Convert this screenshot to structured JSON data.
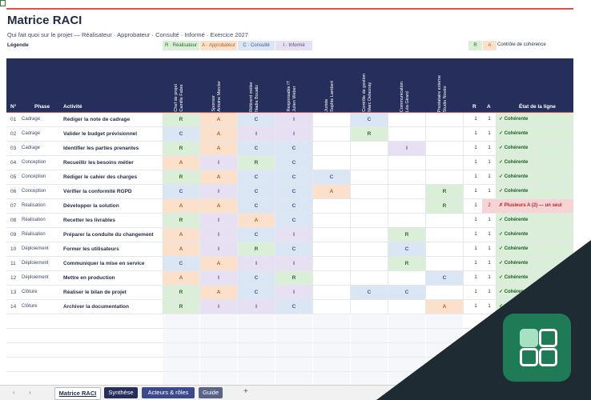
{
  "title": "Matrice RACI",
  "subtitle": "Qui fait quoi sur le projet — Réalisateur · Approbateur · Consulté · Informé · Exercice 2027",
  "legend": {
    "label": "Légende",
    "r": "R · Réalisateur",
    "a": "A · Approbateur",
    "c": "C · Consulté",
    "i": "I · Informé",
    "check_r": "R",
    "check_a": "A",
    "check_label": "Contrôle de cohérence"
  },
  "header": {
    "num": "N°",
    "phase": "Phase",
    "activity": "Activité",
    "roles": [
      "Chef de projet\nCamille Fabre",
      "Sponsor\nAntoine Mercier",
      "Référent métier\nNadia Boualiz",
      "Responsable IT\nJulien Weber",
      "Juriste\nSophie Lambert",
      "Contrôle de gestion\nMarc Delaunay",
      "Communication\nLéa Girard",
      "Prestataire externe\nStudio Novéo"
    ],
    "r": "R",
    "a": "A",
    "state": "État de la ligne"
  },
  "rows": [
    {
      "n": "01",
      "phase": "Cadrage",
      "activity": "Rédiger la note de cadrage",
      "roles": [
        "R",
        "A",
        "C",
        "I",
        "",
        "C",
        "",
        ""
      ],
      "r": "1",
      "a": "1",
      "state": "✓ Cohérente",
      "ok": true
    },
    {
      "n": "02",
      "phase": "Cadrage",
      "activity": "Valider le budget prévisionnel",
      "roles": [
        "C",
        "A",
        "I",
        "I",
        "",
        "R",
        "",
        ""
      ],
      "r": "1",
      "a": "1",
      "state": "✓ Cohérente",
      "ok": true
    },
    {
      "n": "03",
      "phase": "Cadrage",
      "activity": "Identifier les parties prenantes",
      "roles": [
        "R",
        "A",
        "C",
        "C",
        "",
        "",
        "I",
        ""
      ],
      "r": "1",
      "a": "1",
      "state": "✓ Cohérente",
      "ok": true
    },
    {
      "n": "04",
      "phase": "Conception",
      "activity": "Recueillir les besoins métier",
      "roles": [
        "A",
        "I",
        "R",
        "C",
        "",
        "",
        "",
        ""
      ],
      "r": "1",
      "a": "1",
      "state": "✓ Cohérente",
      "ok": true
    },
    {
      "n": "05",
      "phase": "Conception",
      "activity": "Rédiger le cahier des charges",
      "roles": [
        "R",
        "A",
        "C",
        "C",
        "C",
        "",
        "",
        ""
      ],
      "r": "1",
      "a": "1",
      "state": "✓ Cohérente",
      "ok": true
    },
    {
      "n": "06",
      "phase": "Conception",
      "activity": "Vérifier la conformité RGPD",
      "roles": [
        "C",
        "I",
        "C",
        "C",
        "A",
        "",
        "",
        "R"
      ],
      "r": "1",
      "a": "1",
      "state": "✓ Cohérente",
      "ok": true
    },
    {
      "n": "07",
      "phase": "Réalisation",
      "activity": "Développer la solution",
      "roles": [
        "A",
        "A",
        "C",
        "C",
        "",
        "",
        "",
        "R"
      ],
      "r": "1",
      "a": "2",
      "state": "✗ Plusieurs A (2) — un seul autorisé",
      "ok": false
    },
    {
      "n": "08",
      "phase": "Réalisation",
      "activity": "Recetter les livrables",
      "roles": [
        "R",
        "I",
        "A",
        "C",
        "",
        "",
        "",
        ""
      ],
      "r": "1",
      "a": "1",
      "state": "✓ Cohérente",
      "ok": true
    },
    {
      "n": "09",
      "phase": "Réalisation",
      "activity": "Préparer la conduite du changement",
      "roles": [
        "A",
        "I",
        "C",
        "I",
        "",
        "",
        "R",
        ""
      ],
      "r": "1",
      "a": "1",
      "state": "✓ Cohérente",
      "ok": true
    },
    {
      "n": "10",
      "phase": "Déploiement",
      "activity": "Former les utilisateurs",
      "roles": [
        "A",
        "I",
        "R",
        "C",
        "",
        "",
        "C",
        ""
      ],
      "r": "1",
      "a": "1",
      "state": "✓ Cohérente",
      "ok": true
    },
    {
      "n": "11",
      "phase": "Déploiement",
      "activity": "Communiquer la mise en service",
      "roles": [
        "C",
        "A",
        "I",
        "I",
        "",
        "",
        "R",
        ""
      ],
      "r": "1",
      "a": "1",
      "state": "✓ Cohérente",
      "ok": true
    },
    {
      "n": "12",
      "phase": "Déploiement",
      "activity": "Mettre en production",
      "roles": [
        "A",
        "I",
        "C",
        "R",
        "",
        "",
        "",
        "C"
      ],
      "r": "1",
      "a": "1",
      "state": "✓ Cohérente",
      "ok": true
    },
    {
      "n": "13",
      "phase": "Clôture",
      "activity": "Réaliser le bilan de projet",
      "roles": [
        "R",
        "A",
        "C",
        "I",
        "",
        "C",
        "C",
        ""
      ],
      "r": "1",
      "a": "1",
      "state": "✓ Cohérente",
      "ok": true
    },
    {
      "n": "14",
      "phase": "Clôture",
      "activity": "Archiver la documentation",
      "roles": [
        "R",
        "I",
        "I",
        "C",
        "",
        "",
        "",
        "A"
      ],
      "r": "1",
      "a": "1",
      "state": "✓ Cohérente",
      "ok": true
    }
  ],
  "tabs": [
    "Matrice RACI",
    "Synthèse",
    "Acteurs & rôles",
    "Guide"
  ],
  "tabs_add": "+",
  "nav_prev": "‹",
  "nav_next": "›",
  "colors": {
    "R": "#dbeed8",
    "A": "#fbe1cc",
    "C": "#dbe6f5",
    "I": "#e6e0f2",
    "R_text": "#2e6b2e",
    "A_text": "#b0621f",
    "C_text": "#3a5a8f",
    "I_text": "#5b4a8a",
    "header": "#262e5b",
    "accent": "#d9534f"
  }
}
